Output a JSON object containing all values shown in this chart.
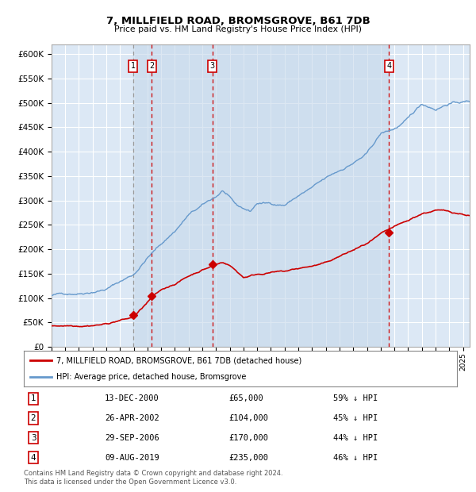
{
  "title": "7, MILLFIELD ROAD, BROMSGROVE, B61 7DB",
  "subtitle": "Price paid vs. HM Land Registry's House Price Index (HPI)",
  "ylim": [
    0,
    620000
  ],
  "yticks": [
    0,
    50000,
    100000,
    150000,
    200000,
    250000,
    300000,
    350000,
    400000,
    450000,
    500000,
    550000,
    600000
  ],
  "ytick_labels": [
    "£0",
    "£50K",
    "£100K",
    "£150K",
    "£200K",
    "£250K",
    "£300K",
    "£350K",
    "£400K",
    "£450K",
    "£500K",
    "£550K",
    "£600K"
  ],
  "background_color": "#ffffff",
  "plot_bg_color": "#dce8f5",
  "grid_color": "#ffffff",
  "red_line_color": "#cc0000",
  "blue_line_color": "#6699cc",
  "sale_marker_color": "#cc0000",
  "vline_color_red": "#cc0000",
  "vline_color_gray": "#999999",
  "sale_dates_year": [
    2000.95,
    2002.32,
    2006.74,
    2019.6
  ],
  "sale_prices": [
    65000,
    104000,
    170000,
    235000
  ],
  "sale_labels": [
    "1",
    "2",
    "3",
    "4"
  ],
  "sale_dates_str": [
    "13-DEC-2000",
    "26-APR-2002",
    "29-SEP-2006",
    "09-AUG-2019"
  ],
  "sale_prices_str": [
    "£65,000",
    "£104,000",
    "£170,000",
    "£235,000"
  ],
  "sale_pct_str": [
    "59% ↓ HPI",
    "45% ↓ HPI",
    "44% ↓ HPI",
    "46% ↓ HPI"
  ],
  "legend_red_label": "7, MILLFIELD ROAD, BROMSGROVE, B61 7DB (detached house)",
  "legend_blue_label": "HPI: Average price, detached house, Bromsgrove",
  "footer": "Contains HM Land Registry data © Crown copyright and database right 2024.\nThis data is licensed under the Open Government Licence v3.0.",
  "xlim_start": 1995.0,
  "xlim_end": 2025.5
}
